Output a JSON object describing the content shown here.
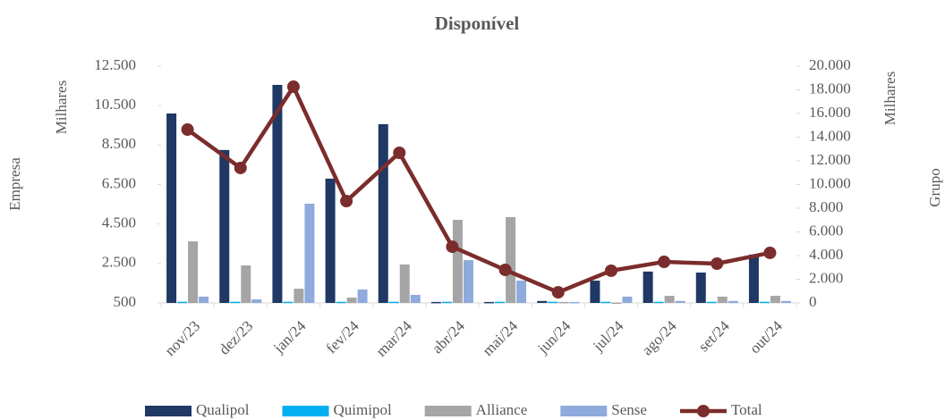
{
  "chart_data": {
    "type": "bar",
    "title": "Disponível",
    "y_label": "Empresa",
    "y_unit": "Milhares",
    "y2_label": "Grupo",
    "y2_unit": "Milhares",
    "categories": [
      "nov/23",
      "dez/23",
      "jan/24",
      "fev/24",
      "mar/24",
      "abr/24",
      "mai/24",
      "jun/24",
      "jul/24",
      "ago/24",
      "set/24",
      "out/24"
    ],
    "series": [
      {
        "name": "Qualipol",
        "type": "bar",
        "color": "#1f3864",
        "values": [
          10100,
          8250,
          11550,
          6800,
          9560,
          550,
          550,
          600,
          1630,
          2090,
          2040,
          2950
        ]
      },
      {
        "name": "Quimipol",
        "type": "bar",
        "color": "#00b0f0",
        "values": [
          560,
          560,
          560,
          560,
          560,
          560,
          560,
          560,
          560,
          560,
          560,
          560
        ]
      },
      {
        "name": "Alliance",
        "type": "bar",
        "color": "#a5a5a5",
        "values": [
          3620,
          2400,
          1220,
          770,
          2450,
          4710,
          4850,
          550,
          520,
          860,
          820,
          860
        ]
      },
      {
        "name": "Sense",
        "type": "bar",
        "color": "#8faadc",
        "values": [
          820,
          680,
          5530,
          1180,
          910,
          2670,
          1630,
          550,
          820,
          600,
          600,
          600
        ]
      },
      {
        "name": "Total",
        "type": "line",
        "axis": "y2",
        "color": "#7b2c2c",
        "values": [
          14640,
          11400,
          18260,
          8600,
          12680,
          4750,
          2790,
          900,
          2720,
          3470,
          3320,
          4230
        ]
      }
    ],
    "ylim": [
      500,
      12500
    ],
    "yticks": [
      500,
      {
        "value": 2500,
        "label": "2.500"
      },
      {
        "value": 4500,
        "label": "4.500"
      },
      {
        "value": 6500,
        "label": "6.500"
      },
      {
        "value": 8500,
        "label": "8.500"
      },
      {
        "value": 10500,
        "label": "10.500"
      },
      {
        "value": 12500,
        "label": "12.500"
      }
    ],
    "y2lim": [
      0,
      20000
    ],
    "y2ticks": [
      0,
      {
        "value": 2000,
        "label": "2.000"
      },
      {
        "value": 4000,
        "label": "4.000"
      },
      {
        "value": 6000,
        "label": "6.000"
      },
      {
        "value": 8000,
        "label": "8.000"
      },
      {
        "value": 10000,
        "label": "10.000"
      },
      {
        "value": 12000,
        "label": "12.000"
      },
      {
        "value": 14000,
        "label": "14.000"
      },
      {
        "value": 16000,
        "label": "16.000"
      },
      {
        "value": 18000,
        "label": "18.000"
      },
      {
        "value": 20000,
        "label": "20.000"
      }
    ],
    "legend": "bottom"
  }
}
